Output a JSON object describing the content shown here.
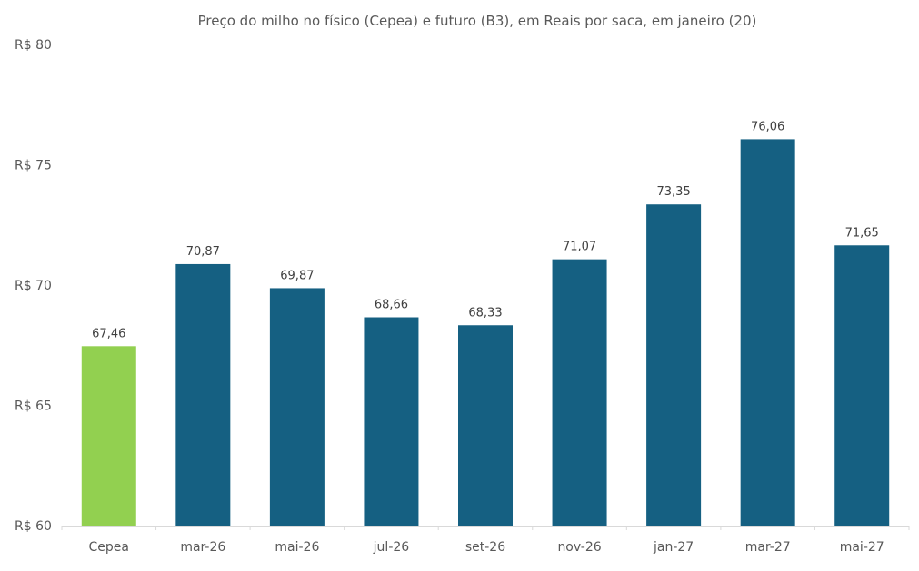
{
  "chart_data": {
    "type": "bar",
    "title": "Preço do milho no físico (Cepea) e futuro (B3), em Reais por saca, em janeiro (20)",
    "xlabel": "",
    "ylabel": "",
    "categories": [
      "Cepea",
      "mar-26",
      "mai-26",
      "jul-26",
      "set-26",
      "nov-26",
      "jan-27",
      "mar-27",
      "mai-27"
    ],
    "values": [
      67.46,
      70.87,
      69.87,
      68.66,
      68.33,
      71.07,
      73.35,
      76.06,
      71.65
    ],
    "data_labels": [
      "67,46",
      "70,87",
      "69,87",
      "68,66",
      "68,33",
      "71,07",
      "73,35",
      "76,06",
      "71,65"
    ],
    "ylim": [
      60,
      80
    ],
    "yticks": [
      60,
      65,
      70,
      75,
      80
    ],
    "ytick_labels": [
      "R$ 60",
      "R$ 65",
      "R$ 70",
      "R$ 75",
      "R$ 80"
    ],
    "grid": false,
    "legend": "none",
    "colors": {
      "spot": "#92D050",
      "futures": "#156082",
      "axis": "#D9D9D9"
    }
  }
}
